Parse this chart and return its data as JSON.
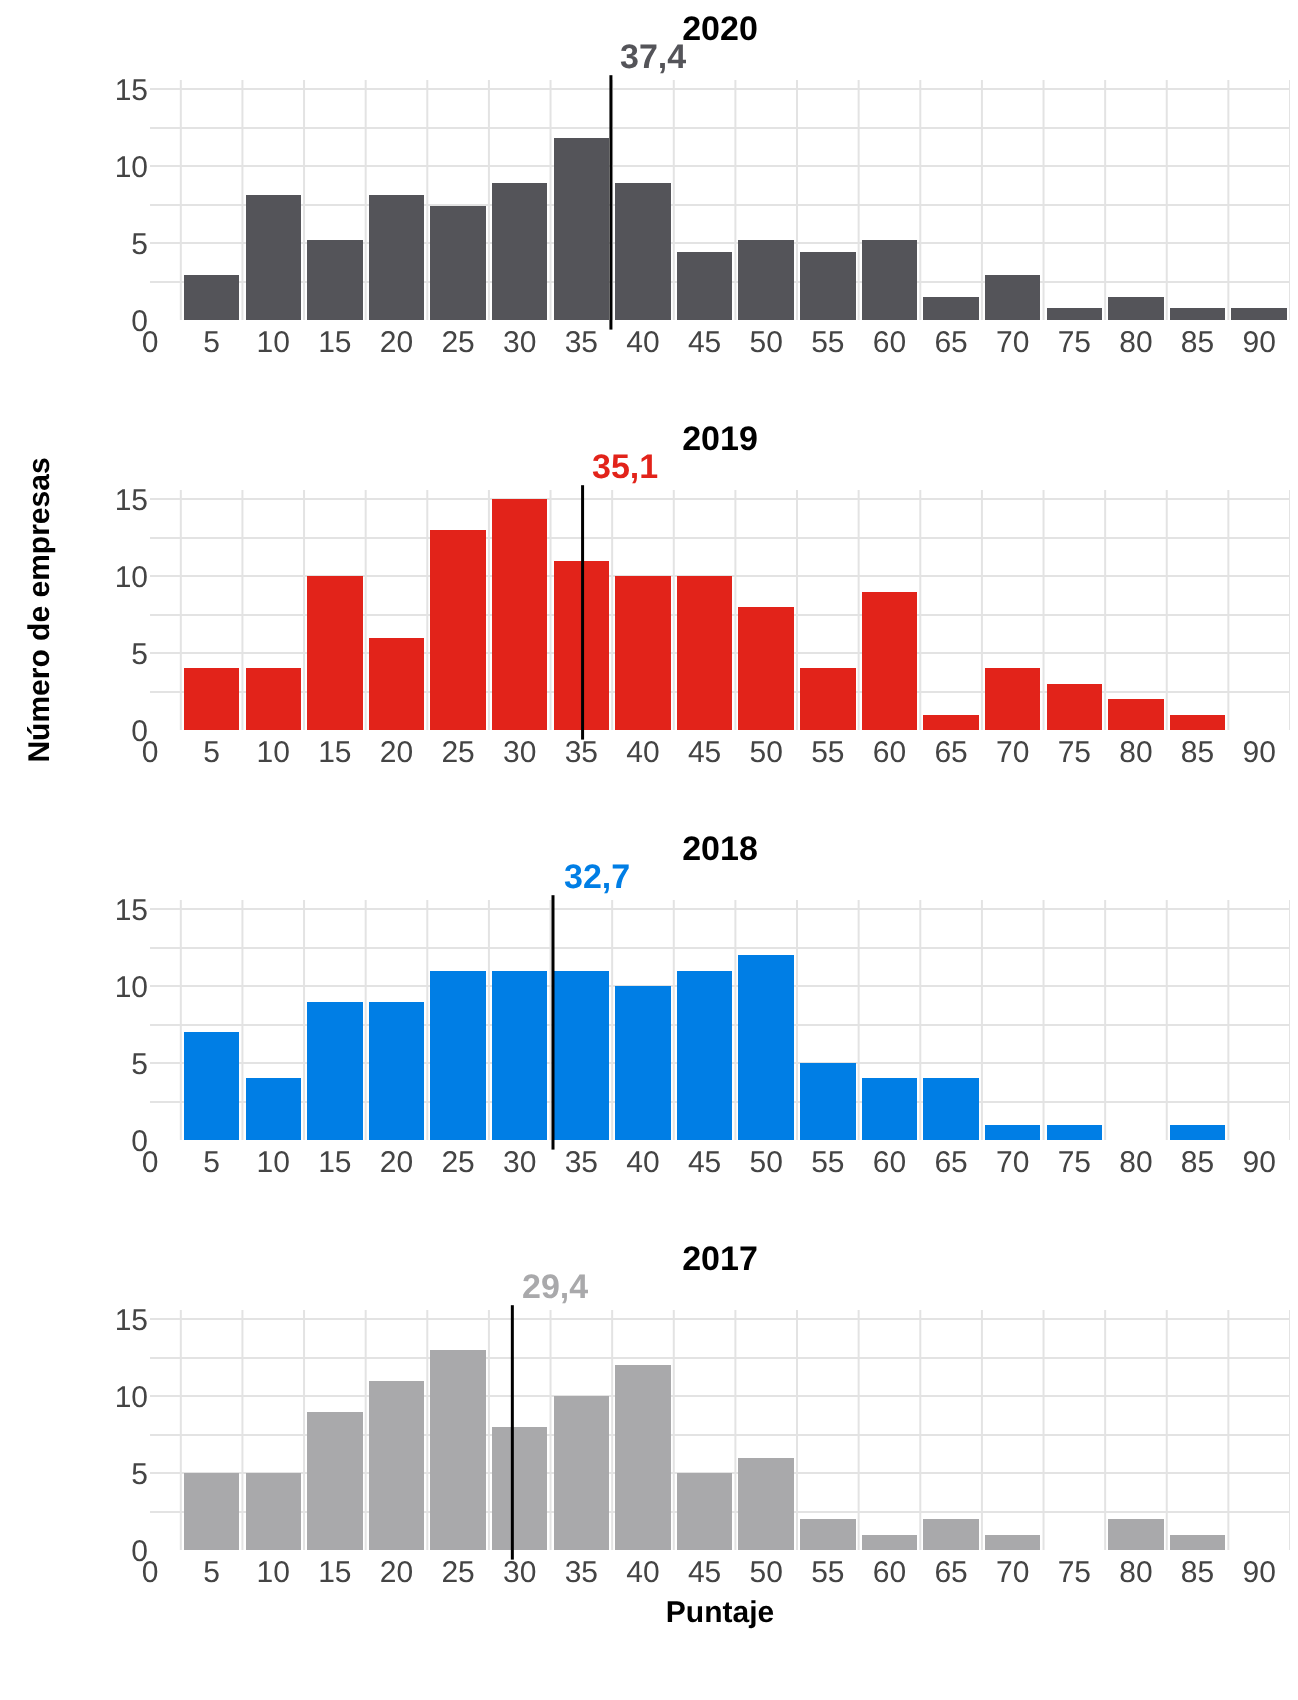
{
  "chart_data": [
    {
      "type": "histogram",
      "title": "2020",
      "bins": [
        2.5,
        7.5,
        12.5,
        17.5,
        22.5,
        27.5,
        32.5,
        37.5,
        42.5,
        47.5,
        52.5,
        57.5,
        62.5,
        67.5,
        72.5,
        77.5,
        82.5,
        87.5,
        92.5
      ],
      "values": [
        2.9,
        8.1,
        5.2,
        8.1,
        7.4,
        8.9,
        11.8,
        8.9,
        4.4,
        5.2,
        4.4,
        5.2,
        1.5,
        2.9,
        0.8,
        1.5,
        0.8,
        0.8
      ],
      "color": "#545459",
      "xlim": [
        0,
        92.5
      ],
      "ylim": [
        0,
        15.6
      ],
      "xticks": [
        0,
        5,
        10,
        15,
        20,
        25,
        30,
        35,
        40,
        45,
        50,
        55,
        60,
        65,
        70,
        75,
        80,
        85,
        90
      ],
      "yticks": [
        0,
        {
          "value": 2.5,
          "label": null
        },
        5,
        {
          "value": 7.5,
          "label": null
        },
        10,
        {
          "value": 12.5,
          "label": null
        },
        15
      ],
      "grid": true,
      "ref_lines": [
        {
          "axis": "x",
          "value": 37.4,
          "label": "37,4",
          "color": "#000000"
        }
      ]
    },
    {
      "type": "histogram",
      "title": "2019",
      "ylabel": "Número de empresas",
      "bins": [
        2.5,
        7.5,
        12.5,
        17.5,
        22.5,
        27.5,
        32.5,
        37.5,
        42.5,
        47.5,
        52.5,
        57.5,
        62.5,
        67.5,
        72.5,
        77.5,
        82.5,
        87.5,
        92.5
      ],
      "values": [
        4,
        4,
        10,
        6,
        13,
        15,
        11,
        10,
        10,
        8,
        4,
        9,
        1,
        4,
        3,
        2,
        1,
        0
      ],
      "color": "#e2231a",
      "xlim": [
        0,
        92.5
      ],
      "ylim": [
        0,
        15.6
      ],
      "xticks": [
        0,
        5,
        10,
        15,
        20,
        25,
        30,
        35,
        40,
        45,
        50,
        55,
        60,
        65,
        70,
        75,
        80,
        85,
        90
      ],
      "yticks": [
        0,
        {
          "value": 2.5,
          "label": null
        },
        5,
        {
          "value": 7.5,
          "label": null
        },
        10,
        {
          "value": 12.5,
          "label": null
        },
        15
      ],
      "grid": true,
      "ref_lines": [
        {
          "axis": "x",
          "value": 35.1,
          "label": "35,1",
          "color": "#000000"
        }
      ]
    },
    {
      "type": "histogram",
      "title": "2018",
      "bins": [
        2.5,
        7.5,
        12.5,
        17.5,
        22.5,
        27.5,
        32.5,
        37.5,
        42.5,
        47.5,
        52.5,
        57.5,
        62.5,
        67.5,
        72.5,
        77.5,
        82.5,
        87.5,
        92.5
      ],
      "values": [
        7,
        4,
        9,
        9,
        11,
        11,
        11,
        10,
        11,
        12,
        5,
        4,
        4,
        1,
        1,
        0,
        1,
        0
      ],
      "color": "#007ee5",
      "xlim": [
        0,
        92.5
      ],
      "ylim": [
        0,
        15.6
      ],
      "xticks": [
        0,
        5,
        10,
        15,
        20,
        25,
        30,
        35,
        40,
        45,
        50,
        55,
        60,
        65,
        70,
        75,
        80,
        85,
        90
      ],
      "yticks": [
        0,
        {
          "value": 2.5,
          "label": null
        },
        5,
        {
          "value": 7.5,
          "label": null
        },
        10,
        {
          "value": 12.5,
          "label": null
        },
        15
      ],
      "grid": true,
      "ref_lines": [
        {
          "axis": "x",
          "value": 32.7,
          "label": "32,7",
          "color": "#000000"
        }
      ]
    },
    {
      "type": "histogram",
      "title": "2017",
      "xlabel": "Puntaje",
      "bins": [
        2.5,
        7.5,
        12.5,
        17.5,
        22.5,
        27.5,
        32.5,
        37.5,
        42.5,
        47.5,
        52.5,
        57.5,
        62.5,
        67.5,
        72.5,
        77.5,
        82.5,
        87.5,
        92.5
      ],
      "values": [
        5,
        5,
        9,
        11,
        13,
        8,
        10,
        12,
        5,
        6,
        2,
        1,
        2,
        1,
        0,
        2,
        1,
        0
      ],
      "color": "#a9a9ab",
      "xlim": [
        0,
        92.5
      ],
      "ylim": [
        0,
        15.6
      ],
      "xticks": [
        0,
        5,
        10,
        15,
        20,
        25,
        30,
        35,
        40,
        45,
        50,
        55,
        60,
        65,
        70,
        75,
        80,
        85,
        90
      ],
      "yticks": [
        0,
        {
          "value": 2.5,
          "label": null
        },
        5,
        {
          "value": 7.5,
          "label": null
        },
        10,
        {
          "value": 12.5,
          "label": null
        },
        15
      ],
      "grid": true,
      "ref_lines": [
        {
          "axis": "x",
          "value": 29.4,
          "label": "29,4",
          "color": "#000000"
        }
      ]
    }
  ]
}
